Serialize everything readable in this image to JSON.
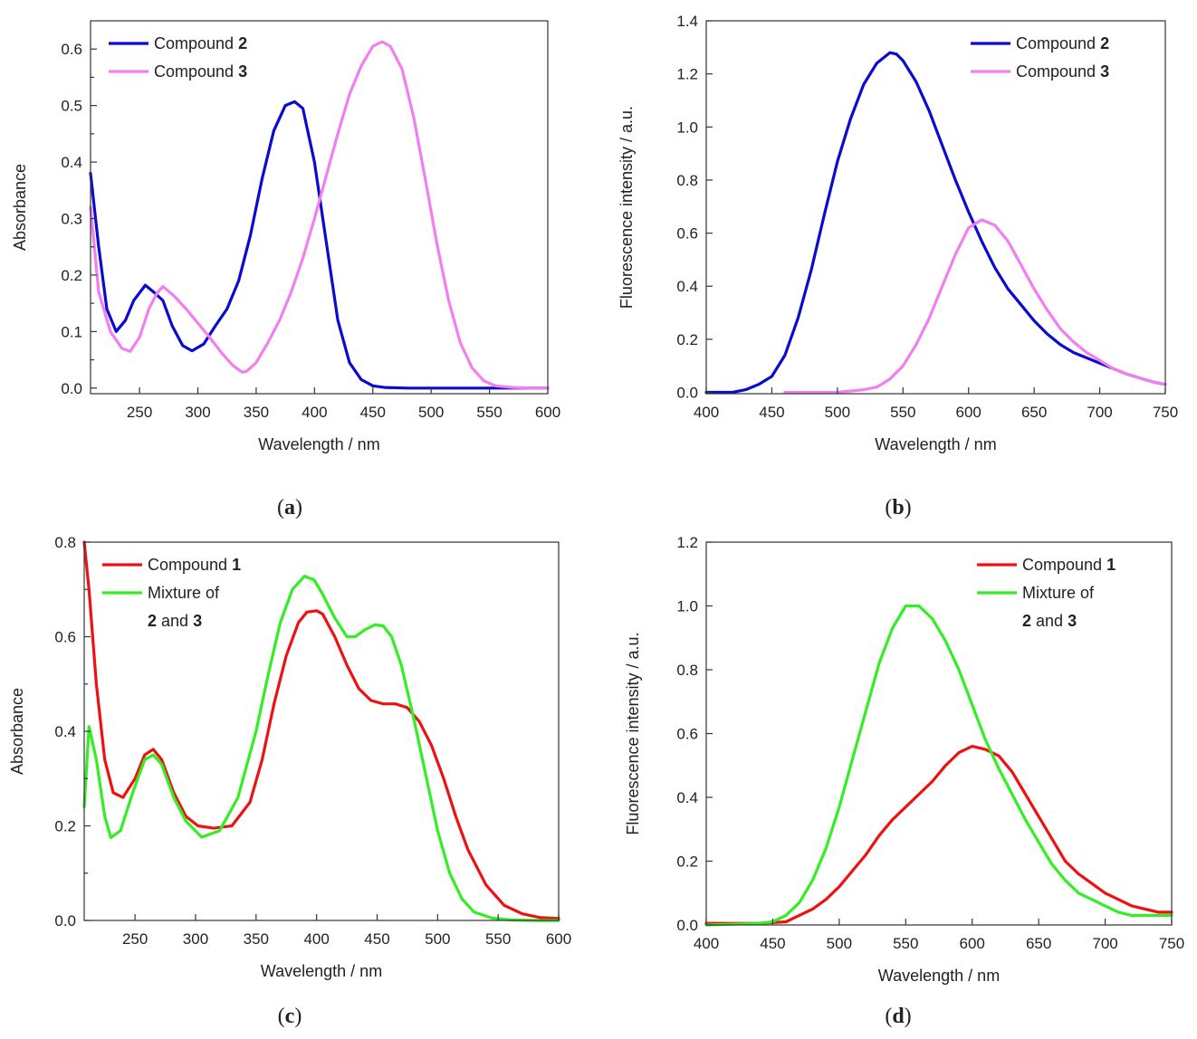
{
  "chart_data": [
    {
      "id": "a",
      "type": "line",
      "caption_letter": "a",
      "xlabel": "Wavelength / nm",
      "ylabel": "Absorbance",
      "xlim": [
        208,
        600
      ],
      "ylim": [
        -0.01,
        0.65
      ],
      "xticks": [
        250,
        300,
        350,
        400,
        450,
        500,
        550,
        600
      ],
      "yticks": [
        0.0,
        0.1,
        0.2,
        0.3,
        0.4,
        0.5,
        0.6
      ],
      "ytick_decimals": 1,
      "minor_yticks": true,
      "legend_position": "top-left",
      "series": [
        {
          "name": "Compound ",
          "name_bold": "2",
          "color": "#0a0ad0",
          "x": [
            208,
            215,
            222,
            230,
            238,
            245,
            255,
            262,
            270,
            278,
            287,
            295,
            305,
            315,
            325,
            335,
            345,
            355,
            365,
            375,
            383,
            390,
            400,
            410,
            420,
            430,
            440,
            450,
            460,
            480,
            500,
            550,
            600
          ],
          "y": [
            0.38,
            0.25,
            0.14,
            0.1,
            0.12,
            0.155,
            0.182,
            0.17,
            0.155,
            0.11,
            0.075,
            0.066,
            0.078,
            0.11,
            0.14,
            0.19,
            0.27,
            0.37,
            0.455,
            0.5,
            0.507,
            0.495,
            0.4,
            0.26,
            0.12,
            0.045,
            0.015,
            0.004,
            0.001,
            0.0,
            0.0,
            0.0,
            0.0
          ]
        },
        {
          "name": "Compound ",
          "name_bold": "3",
          "color": "#f27ff0",
          "x": [
            208,
            215,
            225,
            235,
            242,
            250,
            258,
            265,
            270,
            280,
            290,
            300,
            310,
            320,
            330,
            338,
            342,
            350,
            360,
            370,
            380,
            390,
            400,
            410,
            420,
            430,
            440,
            450,
            458,
            465,
            475,
            485,
            495,
            505,
            515,
            525,
            535,
            545,
            555,
            570,
            585,
            600
          ],
          "y": [
            0.32,
            0.17,
            0.1,
            0.07,
            0.065,
            0.09,
            0.14,
            0.168,
            0.18,
            0.162,
            0.14,
            0.115,
            0.09,
            0.063,
            0.04,
            0.028,
            0.03,
            0.045,
            0.08,
            0.12,
            0.17,
            0.23,
            0.3,
            0.375,
            0.45,
            0.52,
            0.57,
            0.605,
            0.613,
            0.605,
            0.565,
            0.48,
            0.37,
            0.255,
            0.155,
            0.08,
            0.036,
            0.013,
            0.004,
            0.001,
            0.0,
            0.0
          ]
        }
      ]
    },
    {
      "id": "b",
      "type": "line",
      "caption_letter": "b",
      "xlabel": "Wavelength / nm",
      "ylabel": "Fluorescence intensity / a.u.",
      "xlim": [
        400,
        750
      ],
      "ylim": [
        -0.005,
        1.4
      ],
      "xticks": [
        400,
        450,
        500,
        550,
        600,
        650,
        700,
        750
      ],
      "yticks": [
        0.0,
        0.2,
        0.4,
        0.6,
        0.8,
        1.0,
        1.2,
        1.4
      ],
      "ytick_decimals": 1,
      "minor_yticks": false,
      "legend_position": "top-right",
      "series": [
        {
          "name": "Compound ",
          "name_bold": "2",
          "color": "#0a0ad0",
          "x": [
            400,
            420,
            430,
            440,
            450,
            460,
            470,
            480,
            490,
            500,
            510,
            520,
            530,
            540,
            545,
            550,
            560,
            570,
            580,
            590,
            600,
            610,
            620,
            630,
            640,
            650,
            660,
            670,
            680,
            690,
            700,
            710,
            720,
            730,
            740,
            750
          ],
          "y": [
            0.0,
            0.0,
            0.01,
            0.03,
            0.06,
            0.14,
            0.28,
            0.46,
            0.67,
            0.87,
            1.03,
            1.16,
            1.24,
            1.28,
            1.275,
            1.25,
            1.17,
            1.06,
            0.93,
            0.8,
            0.68,
            0.57,
            0.47,
            0.39,
            0.33,
            0.27,
            0.22,
            0.18,
            0.15,
            0.13,
            0.11,
            0.09,
            0.07,
            0.055,
            0.04,
            0.03
          ]
        },
        {
          "name": "Compound ",
          "name_bold": "3",
          "color": "#f27ff0",
          "x": [
            460,
            500,
            520,
            530,
            540,
            550,
            560,
            570,
            580,
            590,
            600,
            610,
            620,
            630,
            640,
            650,
            660,
            670,
            680,
            690,
            700,
            710,
            720,
            730,
            740,
            750
          ],
          "y": [
            0.0,
            0.0,
            0.01,
            0.02,
            0.05,
            0.1,
            0.18,
            0.28,
            0.4,
            0.52,
            0.62,
            0.65,
            0.63,
            0.57,
            0.48,
            0.39,
            0.31,
            0.24,
            0.19,
            0.15,
            0.12,
            0.09,
            0.07,
            0.055,
            0.04,
            0.03
          ]
        }
      ]
    },
    {
      "id": "c",
      "type": "line",
      "caption_letter": "c",
      "xlabel": "Wavelength / nm",
      "ylabel": "Absorbance",
      "xlim": [
        208,
        600
      ],
      "ylim": [
        0.0,
        0.8
      ],
      "xticks": [
        250,
        300,
        350,
        400,
        450,
        500,
        550,
        600
      ],
      "yticks": [
        0.0,
        0.2,
        0.4,
        0.6,
        0.8
      ],
      "ytick_decimals": 1,
      "minor_yticks": true,
      "legend_position": "top-left",
      "series": [
        {
          "name": "Compound ",
          "name_bold": "1",
          "color": "#ee1111",
          "x": [
            208,
            212,
            218,
            225,
            232,
            240,
            250,
            258,
            265,
            272,
            282,
            292,
            302,
            315,
            330,
            345,
            355,
            365,
            375,
            385,
            392,
            400,
            405,
            415,
            425,
            435,
            445,
            455,
            465,
            475,
            485,
            495,
            505,
            515,
            525,
            540,
            555,
            570,
            585,
            600
          ],
          "y": [
            0.8,
            0.7,
            0.5,
            0.34,
            0.27,
            0.26,
            0.3,
            0.35,
            0.362,
            0.34,
            0.27,
            0.22,
            0.2,
            0.195,
            0.2,
            0.25,
            0.34,
            0.46,
            0.56,
            0.63,
            0.652,
            0.655,
            0.648,
            0.6,
            0.54,
            0.49,
            0.465,
            0.458,
            0.458,
            0.45,
            0.42,
            0.37,
            0.3,
            0.22,
            0.15,
            0.075,
            0.032,
            0.014,
            0.006,
            0.004
          ]
        },
        {
          "name": "Mixture of",
          "name_line2_bold_a": "2",
          "name_line2_mid": " and ",
          "name_line2_bold_b": "3",
          "color": "#33ee22",
          "x": [
            208,
            212,
            218,
            225,
            230,
            238,
            248,
            258,
            265,
            272,
            282,
            292,
            305,
            320,
            335,
            350,
            360,
            370,
            380,
            390,
            398,
            405,
            415,
            425,
            432,
            440,
            448,
            455,
            462,
            470,
            480,
            490,
            500,
            510,
            520,
            530,
            545,
            560,
            580,
            600
          ],
          "y": [
            0.24,
            0.41,
            0.34,
            0.22,
            0.175,
            0.19,
            0.27,
            0.34,
            0.35,
            0.33,
            0.26,
            0.21,
            0.176,
            0.19,
            0.26,
            0.4,
            0.52,
            0.63,
            0.7,
            0.728,
            0.72,
            0.69,
            0.64,
            0.6,
            0.6,
            0.615,
            0.625,
            0.623,
            0.6,
            0.54,
            0.43,
            0.31,
            0.19,
            0.1,
            0.046,
            0.018,
            0.005,
            0.001,
            0.0,
            0.0
          ]
        }
      ]
    },
    {
      "id": "d",
      "type": "line",
      "caption_letter": "d",
      "xlabel": "Wavelength / nm",
      "ylabel": "Fluorescence intensity / a.u.",
      "xlim": [
        400,
        750
      ],
      "ylim": [
        0.0,
        1.2
      ],
      "xticks": [
        400,
        450,
        500,
        550,
        600,
        650,
        700,
        750
      ],
      "yticks": [
        0.0,
        0.2,
        0.4,
        0.6,
        0.8,
        1.0,
        1.2
      ],
      "ytick_decimals": 1,
      "minor_yticks": false,
      "legend_position": "top-right",
      "series": [
        {
          "name": "Compound ",
          "name_bold": "1",
          "color": "#ee1111",
          "x": [
            400,
            420,
            440,
            460,
            470,
            480,
            490,
            500,
            510,
            520,
            530,
            540,
            550,
            560,
            570,
            580,
            590,
            600,
            610,
            620,
            630,
            640,
            650,
            660,
            670,
            680,
            690,
            700,
            710,
            720,
            730,
            740,
            750
          ],
          "y": [
            0.005,
            0.005,
            0.005,
            0.01,
            0.03,
            0.05,
            0.08,
            0.12,
            0.17,
            0.22,
            0.28,
            0.33,
            0.37,
            0.41,
            0.45,
            0.5,
            0.54,
            0.56,
            0.55,
            0.53,
            0.48,
            0.41,
            0.34,
            0.27,
            0.2,
            0.16,
            0.13,
            0.1,
            0.08,
            0.06,
            0.05,
            0.04,
            0.04
          ]
        },
        {
          "name": "Mixture of",
          "name_line2_bold_a": "2",
          "name_line2_mid": " and ",
          "name_line2_bold_b": "3",
          "color": "#33ee22",
          "x": [
            400,
            440,
            450,
            460,
            470,
            480,
            490,
            500,
            510,
            520,
            530,
            540,
            550,
            560,
            570,
            580,
            590,
            600,
            610,
            620,
            630,
            640,
            650,
            660,
            670,
            680,
            690,
            700,
            710,
            720,
            730,
            740,
            750
          ],
          "y": [
            0.0,
            0.005,
            0.01,
            0.03,
            0.07,
            0.14,
            0.24,
            0.37,
            0.52,
            0.67,
            0.82,
            0.93,
            1.0,
            1.0,
            0.96,
            0.89,
            0.8,
            0.69,
            0.58,
            0.49,
            0.41,
            0.33,
            0.26,
            0.19,
            0.14,
            0.1,
            0.08,
            0.06,
            0.04,
            0.03,
            0.03,
            0.03,
            0.03
          ]
        }
      ]
    }
  ]
}
